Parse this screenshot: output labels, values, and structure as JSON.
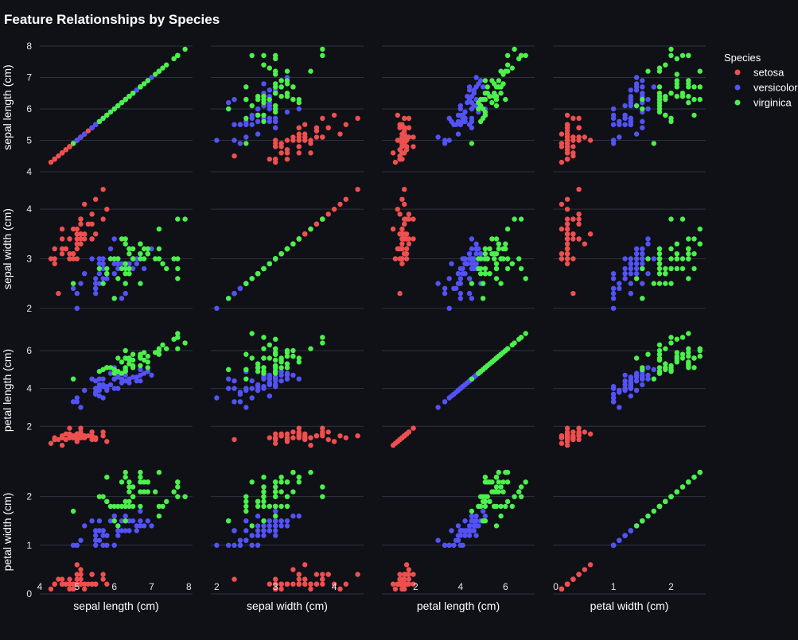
{
  "chart_data": {
    "type": "scatter",
    "title": "Feature Relationships by Species",
    "features": [
      "sepal length (cm)",
      "sepal width (cm)",
      "petal length (cm)",
      "petal width (cm)"
    ],
    "axis_ranges": [
      [
        4.0,
        8.1
      ],
      [
        1.9,
        4.5
      ],
      [
        0.5,
        7.3
      ],
      [
        -0.05,
        2.6
      ]
    ],
    "ticks": [
      [
        4,
        5,
        6,
        7,
        8
      ],
      [
        2,
        3,
        4
      ],
      [
        2,
        4,
        6
      ],
      [
        0,
        1,
        2
      ]
    ],
    "grid": true,
    "legend": {
      "title": "Species",
      "placement": "top-right",
      "entries": [
        "setosa",
        "versicolor",
        "virginica"
      ]
    },
    "series": [
      {
        "name": "setosa",
        "color": "#ef4f4f",
        "points": [
          [
            5.1,
            3.5,
            1.4,
            0.2
          ],
          [
            4.9,
            3.0,
            1.4,
            0.2
          ],
          [
            4.7,
            3.2,
            1.3,
            0.2
          ],
          [
            4.6,
            3.1,
            1.5,
            0.2
          ],
          [
            5.0,
            3.6,
            1.4,
            0.2
          ],
          [
            5.4,
            3.9,
            1.7,
            0.4
          ],
          [
            4.6,
            3.4,
            1.4,
            0.3
          ],
          [
            5.0,
            3.4,
            1.5,
            0.2
          ],
          [
            4.4,
            2.9,
            1.4,
            0.2
          ],
          [
            4.9,
            3.1,
            1.5,
            0.1
          ],
          [
            5.4,
            3.7,
            1.5,
            0.2
          ],
          [
            4.8,
            3.4,
            1.6,
            0.2
          ],
          [
            4.8,
            3.0,
            1.4,
            0.1
          ],
          [
            4.3,
            3.0,
            1.1,
            0.1
          ],
          [
            5.8,
            4.0,
            1.2,
            0.2
          ],
          [
            5.7,
            4.4,
            1.5,
            0.4
          ],
          [
            5.4,
            3.9,
            1.3,
            0.4
          ],
          [
            5.1,
            3.5,
            1.4,
            0.3
          ],
          [
            5.7,
            3.8,
            1.7,
            0.3
          ],
          [
            5.1,
            3.8,
            1.5,
            0.3
          ],
          [
            5.4,
            3.4,
            1.7,
            0.2
          ],
          [
            5.1,
            3.7,
            1.5,
            0.4
          ],
          [
            4.6,
            3.6,
            1.0,
            0.2
          ],
          [
            5.1,
            3.3,
            1.7,
            0.5
          ],
          [
            4.8,
            3.4,
            1.9,
            0.2
          ],
          [
            5.0,
            3.0,
            1.6,
            0.2
          ],
          [
            5.0,
            3.4,
            1.6,
            0.4
          ],
          [
            5.2,
            3.5,
            1.5,
            0.2
          ],
          [
            5.2,
            3.4,
            1.4,
            0.2
          ],
          [
            4.7,
            3.2,
            1.6,
            0.2
          ],
          [
            4.8,
            3.1,
            1.6,
            0.2
          ],
          [
            5.4,
            3.4,
            1.5,
            0.4
          ],
          [
            5.2,
            4.1,
            1.5,
            0.1
          ],
          [
            5.5,
            4.2,
            1.4,
            0.2
          ],
          [
            4.9,
            3.1,
            1.5,
            0.2
          ],
          [
            5.0,
            3.2,
            1.2,
            0.2
          ],
          [
            5.5,
            3.5,
            1.3,
            0.2
          ],
          [
            4.9,
            3.6,
            1.4,
            0.1
          ],
          [
            4.4,
            3.0,
            1.3,
            0.2
          ],
          [
            5.1,
            3.4,
            1.5,
            0.2
          ],
          [
            5.0,
            3.5,
            1.3,
            0.3
          ],
          [
            4.5,
            2.3,
            1.3,
            0.3
          ],
          [
            4.4,
            3.2,
            1.3,
            0.2
          ],
          [
            5.0,
            3.5,
            1.6,
            0.6
          ],
          [
            5.1,
            3.8,
            1.9,
            0.4
          ],
          [
            4.8,
            3.0,
            1.4,
            0.3
          ],
          [
            5.1,
            3.8,
            1.6,
            0.2
          ],
          [
            4.6,
            3.2,
            1.4,
            0.2
          ],
          [
            5.3,
            3.7,
            1.5,
            0.2
          ],
          [
            5.0,
            3.3,
            1.4,
            0.2
          ]
        ]
      },
      {
        "name": "versicolor",
        "color": "#5353f5",
        "points": [
          [
            7.0,
            3.2,
            4.7,
            1.4
          ],
          [
            6.4,
            3.2,
            4.5,
            1.5
          ],
          [
            6.9,
            3.1,
            4.9,
            1.5
          ],
          [
            5.5,
            2.3,
            4.0,
            1.3
          ],
          [
            6.5,
            2.8,
            4.6,
            1.5
          ],
          [
            5.7,
            2.8,
            4.5,
            1.3
          ],
          [
            6.3,
            3.3,
            4.7,
            1.6
          ],
          [
            4.9,
            2.4,
            3.3,
            1.0
          ],
          [
            6.6,
            2.9,
            4.6,
            1.3
          ],
          [
            5.2,
            2.7,
            3.9,
            1.4
          ],
          [
            5.0,
            2.0,
            3.5,
            1.0
          ],
          [
            5.9,
            3.0,
            4.2,
            1.5
          ],
          [
            6.0,
            2.2,
            4.0,
            1.0
          ],
          [
            6.1,
            2.9,
            4.7,
            1.4
          ],
          [
            5.6,
            2.9,
            3.6,
            1.3
          ],
          [
            6.7,
            3.1,
            4.4,
            1.4
          ],
          [
            5.6,
            3.0,
            4.5,
            1.5
          ],
          [
            5.8,
            2.7,
            4.1,
            1.0
          ],
          [
            6.2,
            2.2,
            4.5,
            1.5
          ],
          [
            5.6,
            2.5,
            3.9,
            1.1
          ],
          [
            5.9,
            3.2,
            4.8,
            1.8
          ],
          [
            6.1,
            2.8,
            4.0,
            1.3
          ],
          [
            6.3,
            2.5,
            4.9,
            1.5
          ],
          [
            6.1,
            2.8,
            4.7,
            1.2
          ],
          [
            6.4,
            2.9,
            4.3,
            1.3
          ],
          [
            6.6,
            3.0,
            4.4,
            1.4
          ],
          [
            6.8,
            2.8,
            4.8,
            1.4
          ],
          [
            6.7,
            3.0,
            5.0,
            1.7
          ],
          [
            6.0,
            2.9,
            4.5,
            1.5
          ],
          [
            5.7,
            2.6,
            3.5,
            1.0
          ],
          [
            5.5,
            2.4,
            3.8,
            1.1
          ],
          [
            5.5,
            2.4,
            3.7,
            1.0
          ],
          [
            5.8,
            2.7,
            3.9,
            1.2
          ],
          [
            6.0,
            2.7,
            5.1,
            1.6
          ],
          [
            5.4,
            3.0,
            4.5,
            1.5
          ],
          [
            6.0,
            3.4,
            4.5,
            1.6
          ],
          [
            6.7,
            3.1,
            4.7,
            1.5
          ],
          [
            6.3,
            2.3,
            4.4,
            1.3
          ],
          [
            5.6,
            3.0,
            4.1,
            1.3
          ],
          [
            5.5,
            2.5,
            4.0,
            1.3
          ],
          [
            5.5,
            2.6,
            4.4,
            1.2
          ],
          [
            6.1,
            3.0,
            4.6,
            1.4
          ],
          [
            5.8,
            2.6,
            4.0,
            1.2
          ],
          [
            5.0,
            2.3,
            3.3,
            1.0
          ],
          [
            5.6,
            2.7,
            4.2,
            1.3
          ],
          [
            5.7,
            3.0,
            4.2,
            1.2
          ],
          [
            5.7,
            2.9,
            4.2,
            1.3
          ],
          [
            6.2,
            2.9,
            4.3,
            1.3
          ],
          [
            5.1,
            2.5,
            3.0,
            1.1
          ],
          [
            5.7,
            2.8,
            4.1,
            1.3
          ]
        ]
      },
      {
        "name": "virginica",
        "color": "#4cf04c",
        "points": [
          [
            6.3,
            3.3,
            6.0,
            2.5
          ],
          [
            5.8,
            2.7,
            5.1,
            1.9
          ],
          [
            7.1,
            3.0,
            5.9,
            2.1
          ],
          [
            6.3,
            2.9,
            5.6,
            1.8
          ],
          [
            6.5,
            3.0,
            5.8,
            2.2
          ],
          [
            7.6,
            3.0,
            6.6,
            2.1
          ],
          [
            4.9,
            2.5,
            4.5,
            1.7
          ],
          [
            7.3,
            2.9,
            6.3,
            1.8
          ],
          [
            6.7,
            2.5,
            5.8,
            1.8
          ],
          [
            7.2,
            3.6,
            6.1,
            2.5
          ],
          [
            6.5,
            3.2,
            5.1,
            2.0
          ],
          [
            6.4,
            2.7,
            5.3,
            1.9
          ],
          [
            6.8,
            3.0,
            5.5,
            2.1
          ],
          [
            5.7,
            2.5,
            5.0,
            2.0
          ],
          [
            5.8,
            2.8,
            5.1,
            2.4
          ],
          [
            6.4,
            3.2,
            5.3,
            2.3
          ],
          [
            6.5,
            3.0,
            5.5,
            1.8
          ],
          [
            7.7,
            3.8,
            6.7,
            2.2
          ],
          [
            7.7,
            2.6,
            6.9,
            2.3
          ],
          [
            6.0,
            2.2,
            5.0,
            1.5
          ],
          [
            6.9,
            3.2,
            5.7,
            2.3
          ],
          [
            5.6,
            2.8,
            4.9,
            2.0
          ],
          [
            7.7,
            2.8,
            6.7,
            2.0
          ],
          [
            6.3,
            2.7,
            4.9,
            1.8
          ],
          [
            6.7,
            3.3,
            5.7,
            2.1
          ],
          [
            7.2,
            3.2,
            6.0,
            1.8
          ],
          [
            6.2,
            2.8,
            4.8,
            1.8
          ],
          [
            6.1,
            3.0,
            4.9,
            1.8
          ],
          [
            6.4,
            2.8,
            5.6,
            2.1
          ],
          [
            7.2,
            3.0,
            5.8,
            1.6
          ],
          [
            7.4,
            2.8,
            6.1,
            1.9
          ],
          [
            7.9,
            3.8,
            6.4,
            2.0
          ],
          [
            6.4,
            2.8,
            5.6,
            2.2
          ],
          [
            6.3,
            2.8,
            5.1,
            1.5
          ],
          [
            6.1,
            2.6,
            5.6,
            1.4
          ],
          [
            7.7,
            3.0,
            6.1,
            2.3
          ],
          [
            6.3,
            3.4,
            5.6,
            2.4
          ],
          [
            6.4,
            3.1,
            5.5,
            1.8
          ],
          [
            6.0,
            3.0,
            4.8,
            1.8
          ],
          [
            6.9,
            3.1,
            5.4,
            2.1
          ],
          [
            6.7,
            3.1,
            5.6,
            2.4
          ],
          [
            6.9,
            3.1,
            5.1,
            2.3
          ],
          [
            5.8,
            2.7,
            5.1,
            1.9
          ],
          [
            6.8,
            3.2,
            5.9,
            2.3
          ],
          [
            6.7,
            3.3,
            5.7,
            2.5
          ],
          [
            6.7,
            3.0,
            5.2,
            2.3
          ],
          [
            6.3,
            2.5,
            5.0,
            1.9
          ],
          [
            6.5,
            3.0,
            5.2,
            2.0
          ],
          [
            6.2,
            3.4,
            5.4,
            2.3
          ],
          [
            5.9,
            3.0,
            5.1,
            1.8
          ]
        ]
      }
    ]
  }
}
